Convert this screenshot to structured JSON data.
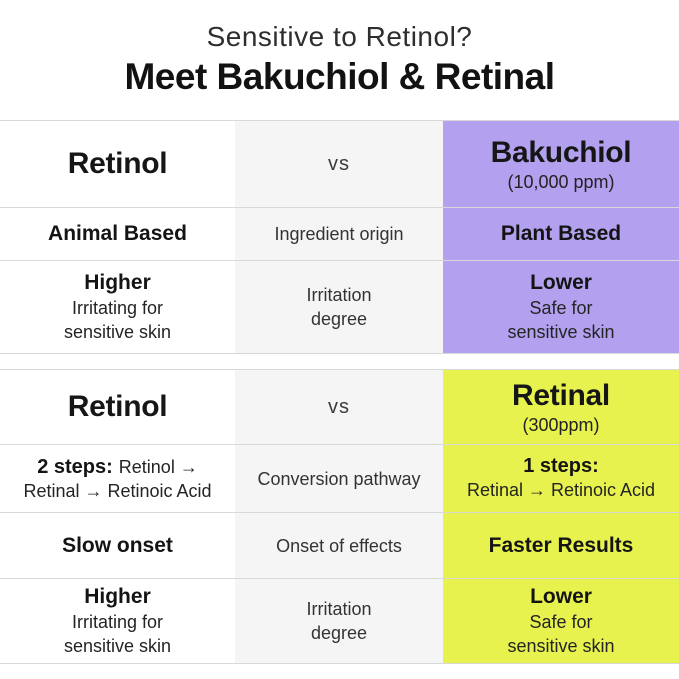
{
  "title": {
    "subtitle": "Sensitive to Retinol?",
    "main": "Meet Bakuchiol & Retinal"
  },
  "colors": {
    "accent_purple": "#b3a1ef",
    "accent_yellow": "#e7f24e",
    "column_gray": "#f5f5f5",
    "row_border": "#d8d8d8"
  },
  "comparison_tables": [
    {
      "id": "retinol-vs-bakuchiol",
      "header": {
        "left_name": "Retinol",
        "versus": "vs",
        "right_name": "Bakuchiol",
        "right_concentration": "(10,000 ppm)"
      },
      "rows": [
        {
          "attribute": "Ingredient origin",
          "left": "Animal Based",
          "right": "Plant Based"
        },
        {
          "attribute": "Irritation\ndegree",
          "left_main": "Higher",
          "left_sub": "Irritating for\nsensitive skin",
          "right_main": "Lower",
          "right_sub": "Safe for\nsensitive skin"
        }
      ]
    },
    {
      "id": "retinol-vs-retinal",
      "header": {
        "left_name": "Retinol",
        "versus": "vs",
        "right_name": "Retinal",
        "right_concentration": "(300ppm)"
      },
      "rows": [
        {
          "attribute": "Conversion pathway",
          "left_bold": "2 steps:",
          "left_rest": "Retinol →",
          "left_line2": "Retinal → Retinoic Acid",
          "right_bold": "1 steps:",
          "right_line2": "Retinal → Retinoic Acid"
        },
        {
          "attribute": "Onset of effects",
          "left": "Slow onset",
          "right": "Faster Results"
        },
        {
          "attribute": "Irritation\ndegree",
          "left_main": "Higher",
          "left_sub": "Irritating for\nsensitive skin",
          "right_main": "Lower",
          "right_sub": "Safe for\nsensitive skin"
        }
      ]
    }
  ]
}
